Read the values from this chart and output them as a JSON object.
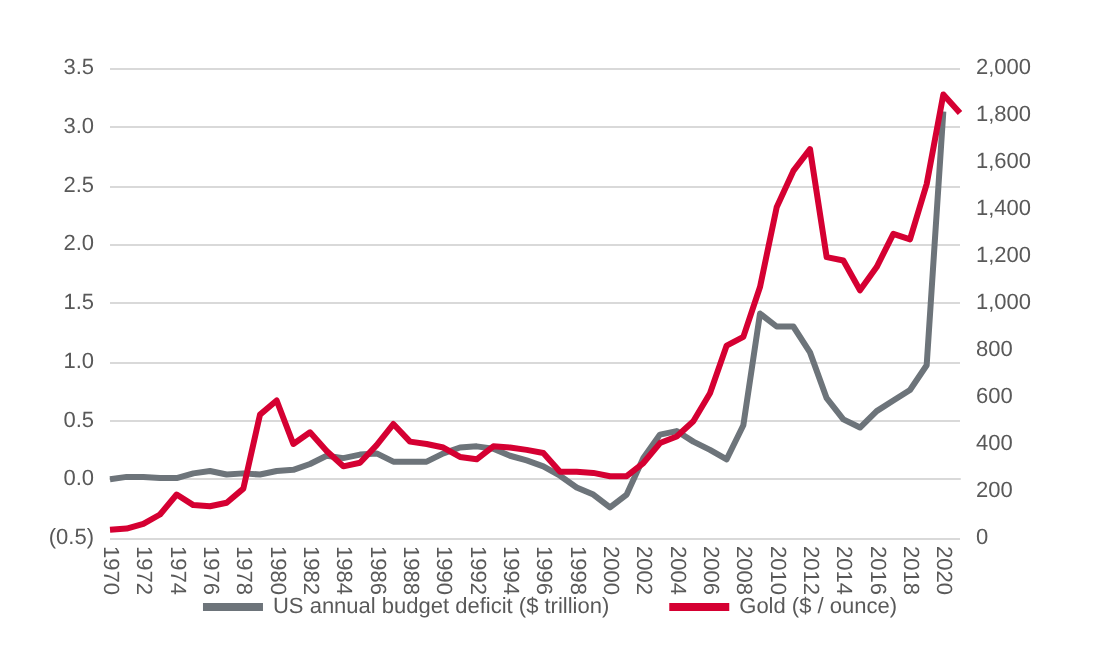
{
  "chart_data": {
    "type": "line",
    "categories": [
      "1970",
      null,
      "1972",
      null,
      "1974",
      null,
      "1976",
      null,
      "1978",
      null,
      "1980",
      null,
      "1982",
      null,
      "1984",
      null,
      "1986",
      null,
      "1988",
      null,
      "1990",
      null,
      "1992",
      null,
      "1994",
      null,
      "1996",
      null,
      "1998",
      null,
      "2000",
      null,
      "2002",
      null,
      "2004",
      null,
      "2006",
      null,
      "2008",
      null,
      "2010",
      null,
      "2012",
      null,
      "2014",
      null,
      "2016",
      null,
      "2018",
      null,
      "2020",
      null
    ],
    "series": [
      {
        "name": "US annual budget deficit ($ trillion)",
        "color": "#6d747a",
        "values": [
          0.0,
          0.02,
          0.02,
          0.01,
          0.01,
          0.05,
          0.07,
          0.04,
          0.05,
          0.04,
          0.07,
          0.08,
          0.13,
          0.2,
          0.18,
          0.21,
          0.22,
          0.15,
          0.15,
          0.15,
          0.22,
          0.27,
          0.28,
          0.26,
          0.2,
          0.16,
          0.11,
          0.03,
          -0.07,
          -0.13,
          -0.24,
          -0.13,
          0.18,
          0.38,
          0.41,
          0.32,
          0.25,
          0.17,
          0.46,
          1.41,
          1.3,
          1.3,
          1.08,
          0.69,
          0.51,
          0.44,
          0.58,
          0.67,
          0.76,
          0.97,
          3.13,
          null
        ]
      },
      {
        "name": "Gold ($ / ounce)",
        "color": "#d50032",
        "axis": "y2",
        "values": [
          35,
          40,
          60,
          100,
          185,
          140,
          135,
          150,
          210,
          525,
          585,
          400,
          450,
          370,
          305,
          320,
          395,
          485,
          410,
          400,
          385,
          345,
          335,
          390,
          385,
          375,
          362,
          282,
          282,
          277,
          263,
          263,
          319,
          404,
          432,
          497,
          616,
          819,
          856,
          1068,
          1407,
          1562,
          1655,
          1195,
          1181,
          1054,
          1153,
          1294,
          1271,
          1506,
          1887,
          1808
        ]
      }
    ],
    "ylim": [
      -0.5,
      3.5
    ],
    "yticks": [
      {
        "value": -0.5,
        "label": "(0.5)"
      },
      {
        "value": 0,
        "label": "0.0"
      },
      0.5,
      {
        "value": 1,
        "label": "1.0"
      },
      1.5,
      {
        "value": 2,
        "label": "2.0"
      },
      2.5,
      {
        "value": 3,
        "label": "3.0"
      },
      3.5
    ],
    "y2lim": [
      0,
      2000
    ],
    "y2ticks": [
      0,
      200,
      400,
      600,
      800,
      {
        "value": 1000,
        "label": "1,000"
      },
      {
        "value": 1200,
        "label": "1,200"
      },
      {
        "value": 1400,
        "label": "1,400"
      },
      {
        "value": 1600,
        "label": "1,600"
      },
      {
        "value": 1800,
        "label": "1,800"
      },
      {
        "value": 2000,
        "label": "2,000"
      }
    ],
    "grid": "y",
    "legend": "bottom",
    "marker": "none",
    "line_style": "solid"
  }
}
